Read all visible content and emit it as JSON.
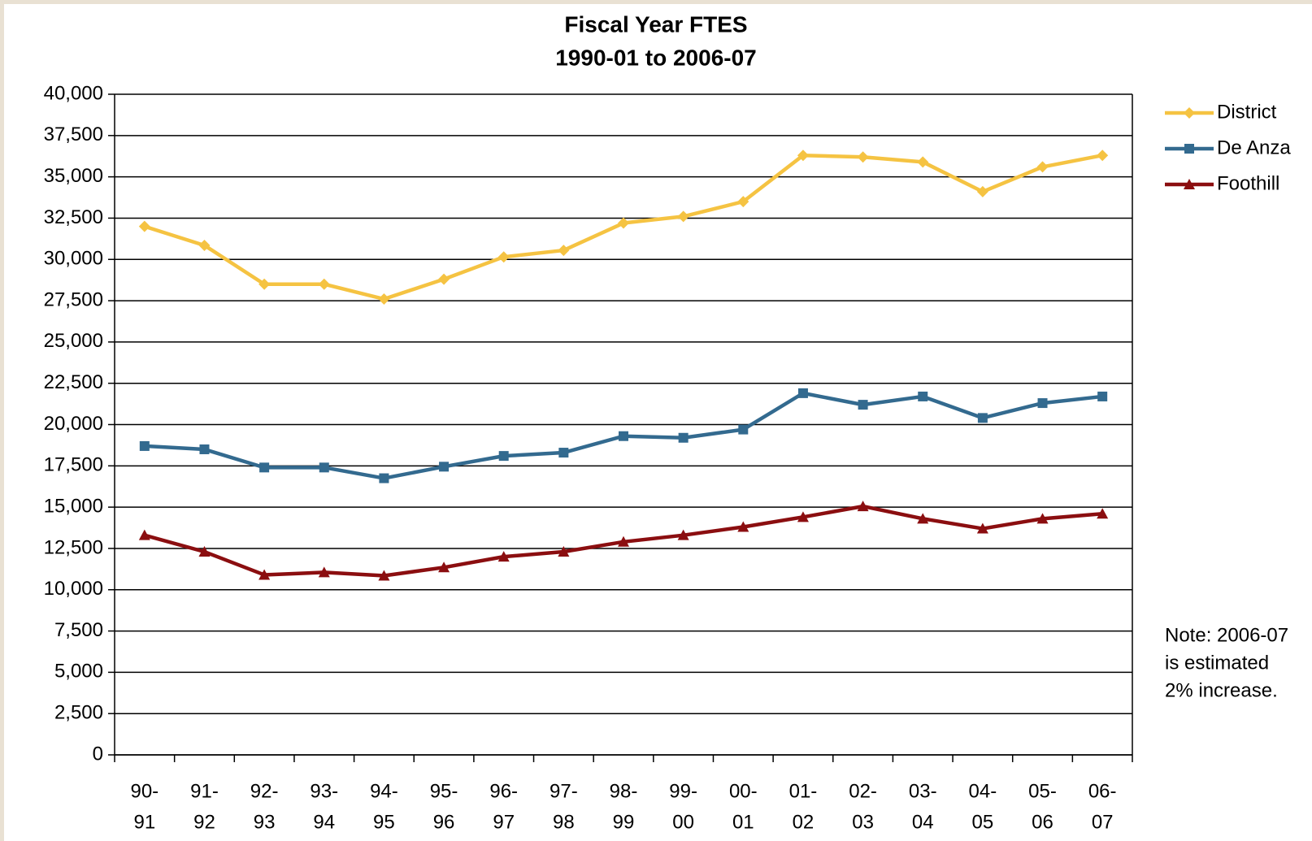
{
  "chart_data": {
    "type": "line",
    "title": [
      "Fiscal Year FTES",
      "1990-01 to 2006-07"
    ],
    "categories": [
      [
        "90-",
        "91"
      ],
      [
        "91-",
        "92"
      ],
      [
        "92-",
        "93"
      ],
      [
        "93-",
        "94"
      ],
      [
        "94-",
        "95"
      ],
      [
        "95-",
        "96"
      ],
      [
        "96-",
        "97"
      ],
      [
        "97-",
        "98"
      ],
      [
        "98-",
        "99"
      ],
      [
        "99-",
        "00"
      ],
      [
        "00-",
        "01"
      ],
      [
        "01-",
        "02"
      ],
      [
        "02-",
        "03"
      ],
      [
        "03-",
        "04"
      ],
      [
        "04-",
        "05"
      ],
      [
        "05-",
        "06"
      ],
      [
        "06-",
        "07"
      ]
    ],
    "series": [
      {
        "name": "District",
        "color": "#f5c342",
        "marker": "diamond",
        "values": [
          32000,
          30850,
          28500,
          28500,
          27600,
          28800,
          30150,
          30550,
          32200,
          32600,
          33500,
          36300,
          36200,
          35900,
          34100,
          35600,
          36300
        ]
      },
      {
        "name": "De Anza",
        "color": "#336a8f",
        "marker": "square",
        "values": [
          18700,
          18500,
          17400,
          17400,
          16750,
          17450,
          18100,
          18300,
          19300,
          19200,
          19700,
          21900,
          21200,
          21700,
          20400,
          21300,
          21700
        ]
      },
      {
        "name": "Foothill",
        "color": "#8b0e10",
        "marker": "triangle",
        "values": [
          13300,
          12300,
          10900,
          11050,
          10850,
          11350,
          12000,
          12300,
          12900,
          13300,
          13800,
          14400,
          15050,
          14300,
          13700,
          14300,
          14600
        ]
      }
    ],
    "ylim": [
      0,
      40000
    ],
    "yticks": [
      0,
      {
        "value": 2500,
        "label": "2,500"
      },
      {
        "value": 5000,
        "label": "5,000"
      },
      {
        "value": 7500,
        "label": "7,500"
      },
      {
        "value": 10000,
        "label": "10,000"
      },
      {
        "value": 12500,
        "label": "12,500"
      },
      {
        "value": 15000,
        "label": "15,000"
      },
      {
        "value": 17500,
        "label": "17,500"
      },
      {
        "value": 20000,
        "label": "20,000"
      },
      {
        "value": 22500,
        "label": "22,500"
      },
      {
        "value": 25000,
        "label": "25,000"
      },
      {
        "value": 27500,
        "label": "27,500"
      },
      {
        "value": 30000,
        "label": "30,000"
      },
      {
        "value": 32500,
        "label": "32,500"
      },
      {
        "value": 35000,
        "label": "35,000"
      },
      {
        "value": 37500,
        "label": "37,500"
      },
      {
        "value": 40000,
        "label": "40,000"
      }
    ],
    "grid": true,
    "legend": "right",
    "annotation": [
      "Note: 2006-07",
      "is estimated",
      "2% increase."
    ]
  }
}
